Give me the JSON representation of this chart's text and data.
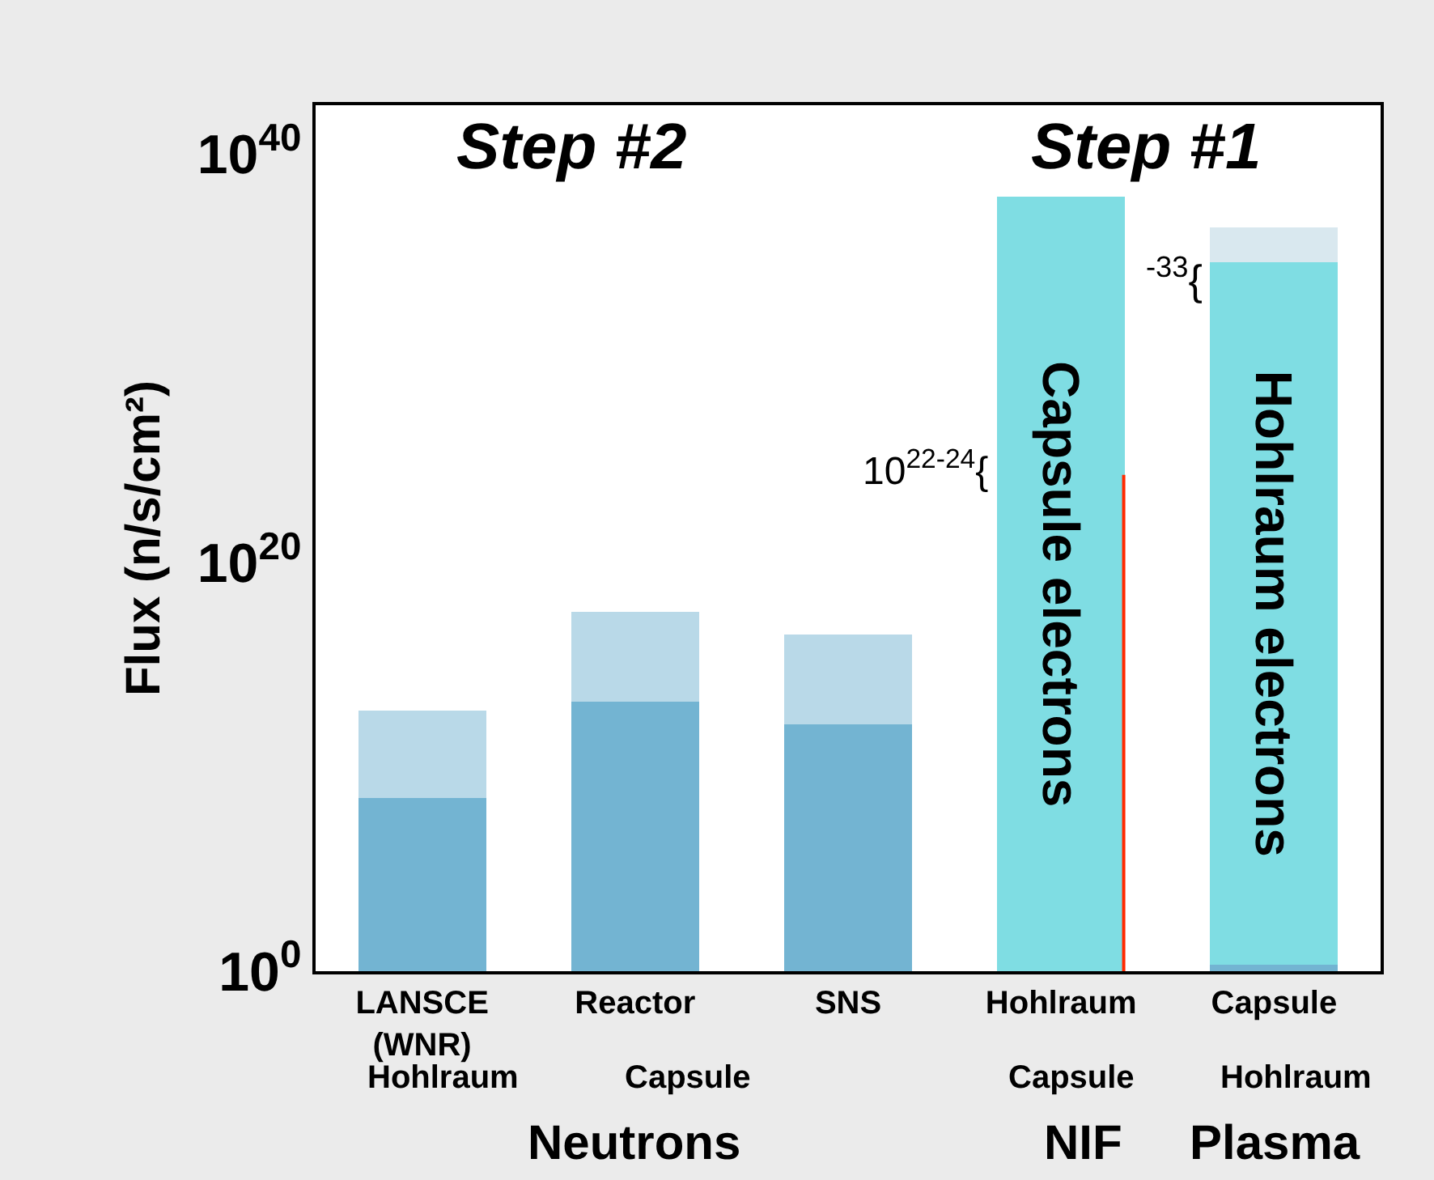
{
  "chart_data": {
    "type": "bar",
    "stacked": true,
    "categories": [
      "LANSCE (WNR)",
      "Reactor",
      "SNS",
      "Hohlraum",
      "Capsule"
    ],
    "ylabel": "Flux (n/s/cm²)",
    "log": true,
    "ylim": [
      1,
      2.5e+42
    ],
    "yticks": [
      {
        "value": 1,
        "label": "10$^{0}$"
      },
      {
        "value": 1e+20,
        "label": "10$^{20}$"
      },
      {
        "value": 1e+40,
        "label": "10$^{40}$"
      }
    ],
    "series": [
      {
        "color": "#73b4d2",
        "values": [
          300000000.0,
          15000000000000.0,
          1200000000000.0,
          null,
          2
        ]
      },
      {
        "name": "Capsule electrons",
        "color": "#7fdde3",
        "values": [
          null,
          null,
          null,
          8e+37,
          null
        ]
      },
      {
        "name": "Hohlraum electrons",
        "color": "#7fdde3",
        "values": [
          null,
          null,
          null,
          null,
          5e+34
        ]
      },
      {
        "colors": [
          "#b9d9e8",
          "#b9d9e8",
          "#b9d9e8",
          null,
          "#d9e8ef"
        ],
        "values": [
          6000000000000.0,
          4e+17,
          3e+16,
          null,
          2.5e+36
        ]
      },
      {
        "type": "line",
        "color": "#ff2a00",
        "x": [
          "Hohlraum",
          "Hohlraum"
        ],
        "values": [
          1,
          2e+24
        ]
      }
    ],
    "annotations": [
      "Step #2",
      "Step #1",
      "10$^{22-24}${",
      "$^{-33}${",
      "Hohlraum",
      "Capsule",
      "Capsule",
      "Hohlraum",
      "Neutrons",
      "NIF",
      "Plasma"
    ]
  }
}
